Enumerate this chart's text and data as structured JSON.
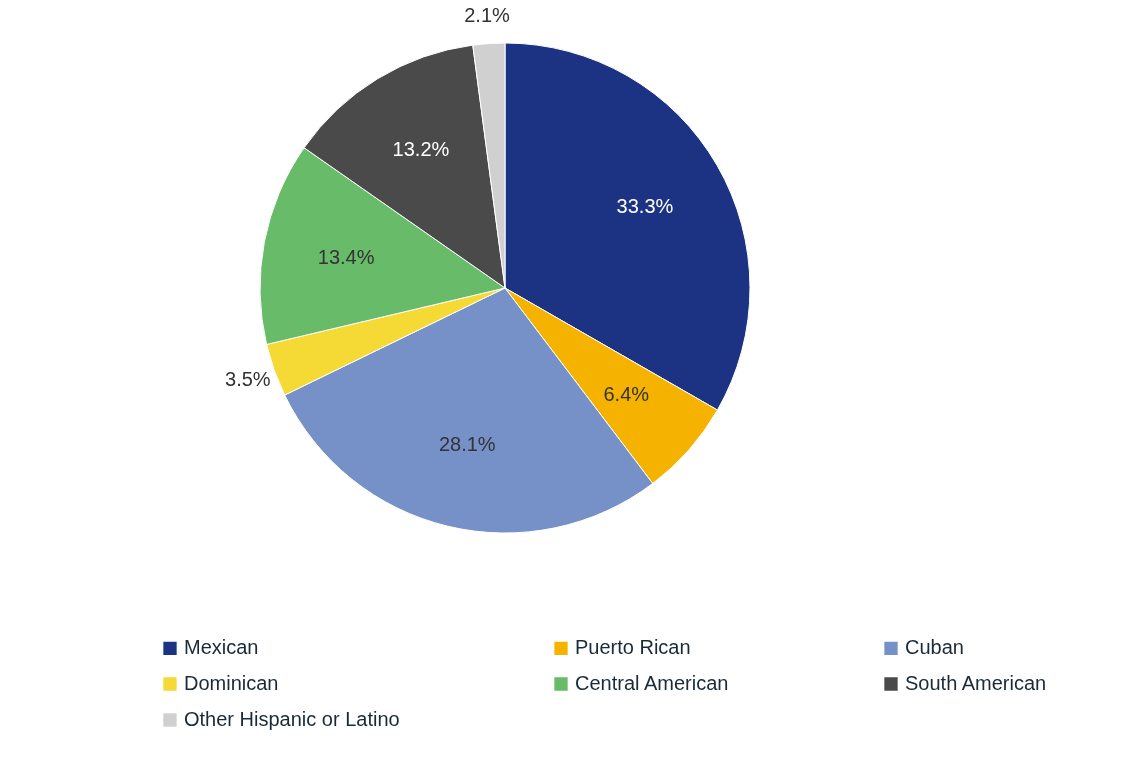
{
  "chart_data": {
    "type": "pie",
    "categories": [
      "Mexican",
      "Puerto Rican",
      "Cuban",
      "Dominican",
      "Central American",
      "South American",
      "Other Hispanic or Latino"
    ],
    "values": [
      33.3,
      6.4,
      28.1,
      3.5,
      13.4,
      13.2,
      2.1
    ],
    "colors": [
      "#1c3282",
      "#f5b300",
      "#7690c8",
      "#f5d934",
      "#68bb68",
      "#4a4a4a",
      "#d0d0d0"
    ],
    "value_labels": [
      "33.3%",
      "6.4%",
      "28.1%",
      "3.5%",
      "13.4%",
      "13.2%",
      "2.1%"
    ],
    "legend": "bottom"
  }
}
